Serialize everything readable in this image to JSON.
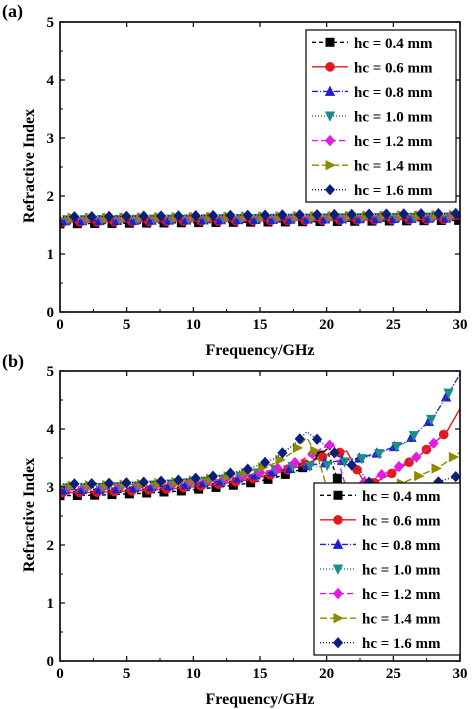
{
  "chart_data": [
    {
      "type": "line",
      "panel_label": "(a)",
      "xlabel": "Frequency/GHz",
      "ylabel": "Refractive Index",
      "xlim": [
        0,
        30
      ],
      "ylim": [
        0,
        5
      ],
      "xticks": [
        0,
        5,
        10,
        15,
        20,
        25,
        30
      ],
      "yticks": [
        0,
        1,
        2,
        3,
        4,
        5
      ],
      "grid": false,
      "legend_position": "top-right",
      "series": [
        {
          "name": "hc = 0.4 mm",
          "color": "#000000",
          "marker": "square",
          "dash": "4,3",
          "x": [
            0,
            30
          ],
          "y": [
            1.52,
            1.58
          ]
        },
        {
          "name": "hc = 0.6 mm",
          "color": "#e31a1c",
          "marker": "circle",
          "dash": "none",
          "x": [
            0,
            30
          ],
          "y": [
            1.55,
            1.6
          ]
        },
        {
          "name": "hc = 0.8 mm",
          "color": "#1f1fcf",
          "marker": "triangle-up",
          "dash": "6,2,1,2",
          "x": [
            0,
            30
          ],
          "y": [
            1.57,
            1.62
          ]
        },
        {
          "name": "hc = 1.0 mm",
          "color": "#1e8c8c",
          "marker": "triangle-down",
          "dash": "1,2",
          "x": [
            0,
            30
          ],
          "y": [
            1.59,
            1.64
          ]
        },
        {
          "name": "hc = 1.2 mm",
          "color": "#e41ae4",
          "marker": "diamond",
          "dash": "6,3",
          "x": [
            0,
            30
          ],
          "y": [
            1.61,
            1.66
          ]
        },
        {
          "name": "hc = 1.4 mm",
          "color": "#8b8b00",
          "marker": "triangle-right",
          "dash": "7,3",
          "x": [
            0,
            30
          ],
          "y": [
            1.62,
            1.67
          ]
        },
        {
          "name": "hc = 1.6 mm",
          "color": "#0a1f7a",
          "marker": "diamond",
          "dash": "1,2",
          "x": [
            0,
            30
          ],
          "y": [
            1.64,
            1.7
          ]
        }
      ]
    },
    {
      "type": "line",
      "panel_label": "(b)",
      "xlabel": "Frequency/GHz",
      "ylabel": "Refractive Index",
      "xlim": [
        0,
        30
      ],
      "ylim": [
        0,
        5
      ],
      "xticks": [
        0,
        5,
        10,
        15,
        20,
        25,
        30
      ],
      "yticks": [
        0,
        1,
        2,
        3,
        4,
        5
      ],
      "grid": false,
      "legend_position": "bottom-right",
      "series": [
        {
          "name": "hc = 0.4 mm",
          "color": "#000000",
          "marker": "square",
          "dash": "4,3",
          "x": [
            0,
            3,
            6,
            9,
            12,
            14,
            16,
            18,
            19.5,
            20,
            22,
            25,
            27,
            28.5,
            30
          ],
          "y": [
            2.85,
            2.86,
            2.89,
            2.93,
            3.0,
            3.06,
            3.15,
            3.3,
            3.55,
            3.65,
            2.4,
            2.5,
            2.65,
            2.8,
            2.95
          ]
        },
        {
          "name": "hc = 0.6 mm",
          "color": "#e31a1c",
          "marker": "circle",
          "dash": "none",
          "x": [
            0,
            3,
            6,
            9,
            12,
            14,
            16,
            18,
            20,
            21.5,
            23,
            25,
            27,
            29,
            30
          ],
          "y": [
            2.9,
            2.91,
            2.94,
            2.98,
            3.05,
            3.12,
            3.22,
            3.36,
            3.55,
            3.62,
            3.0,
            3.25,
            3.55,
            3.95,
            4.35
          ]
        },
        {
          "name": "hc = 0.8 mm",
          "color": "#1f1fcf",
          "marker": "triangle-up",
          "dash": "6,2,1,2",
          "x": [
            0,
            3,
            6,
            9,
            12,
            15,
            18,
            20,
            22.5,
            24,
            26,
            28,
            29.5,
            30
          ],
          "y": [
            2.95,
            2.96,
            2.99,
            3.03,
            3.1,
            3.22,
            3.35,
            3.42,
            3.5,
            3.6,
            3.78,
            4.2,
            4.75,
            4.95
          ]
        },
        {
          "name": "hc = 1.0 mm",
          "color": "#1e8c8c",
          "marker": "triangle-down",
          "dash": "1,2",
          "x": [
            0,
            3,
            6,
            9,
            12,
            15,
            18,
            19.5,
            21,
            22.5,
            24,
            26,
            28,
            29.5,
            30
          ],
          "y": [
            2.98,
            2.99,
            3.02,
            3.06,
            3.12,
            3.25,
            3.38,
            3.35,
            3.42,
            3.48,
            3.58,
            3.77,
            4.2,
            4.75,
            4.95
          ]
        },
        {
          "name": "hc = 1.2 mm",
          "color": "#e41ae4",
          "marker": "diamond",
          "dash": "6,3",
          "x": [
            0,
            3,
            6,
            9,
            12,
            14,
            16,
            18,
            19.5,
            20.5,
            21.5,
            23,
            25,
            27,
            28,
            28.8
          ],
          "y": [
            3.0,
            3.01,
            3.03,
            3.07,
            3.13,
            3.2,
            3.3,
            3.45,
            3.65,
            3.75,
            2.95,
            3.1,
            3.3,
            3.55,
            3.75,
            3.9
          ]
        },
        {
          "name": "hc = 1.4 mm",
          "color": "#8b8b00",
          "marker": "triangle-right",
          "dash": "7,3",
          "x": [
            0,
            3,
            6,
            9,
            12,
            14,
            16,
            17.5,
            18.5,
            19.3,
            20,
            22,
            25,
            28.5,
            30
          ],
          "y": [
            3.02,
            3.03,
            3.05,
            3.09,
            3.16,
            3.25,
            3.4,
            3.6,
            3.85,
            3.55,
            3.0,
            2.7,
            3.0,
            3.35,
            3.6
          ]
        },
        {
          "name": "hc = 1.6 mm",
          "color": "#0a1f7a",
          "marker": "diamond",
          "dash": "1,2",
          "x": [
            0,
            3,
            6,
            9,
            12,
            14,
            16,
            17.5,
            18.5,
            19.3,
            20.8,
            22.5,
            24.5,
            26.5,
            28.5,
            30
          ],
          "y": [
            3.05,
            3.06,
            3.08,
            3.12,
            3.2,
            3.3,
            3.48,
            3.72,
            3.95,
            3.82,
            3.55,
            3.28,
            2.7,
            2.9,
            3.1,
            3.2
          ]
        }
      ]
    }
  ]
}
